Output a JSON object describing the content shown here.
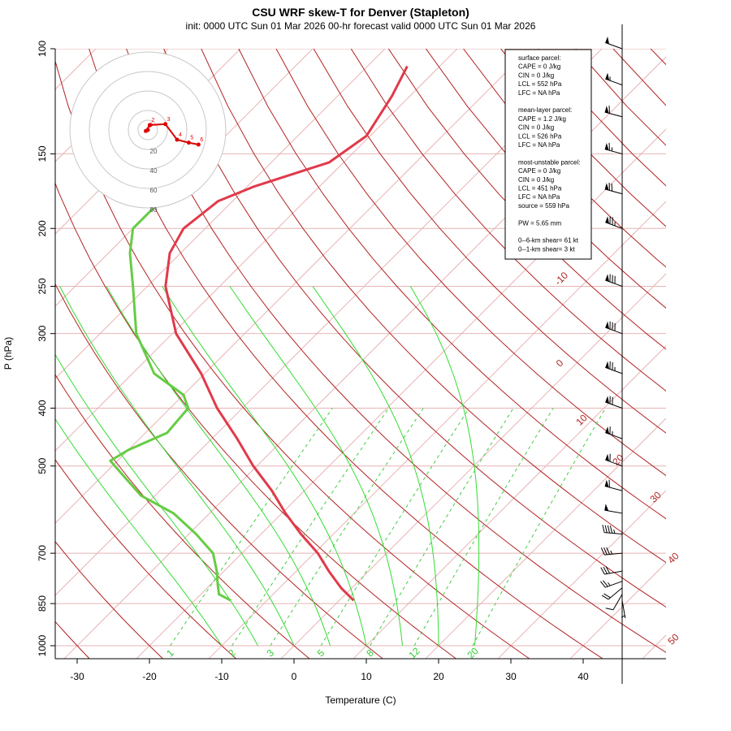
{
  "title": "CSU WRF skew-T for Denver (Stapleton)",
  "subtitle": "init: 0000 UTC Sun 01 Mar 2026    00-hr forecast valid 0000 UTC Sun 01 Mar 2026",
  "colors": {
    "temperature": "#e03a4a",
    "dewpoint": "#66cc44",
    "dry_adiabat": "#b22222",
    "isotherm": "#e8b4b4",
    "isobar": "#e8b4b4",
    "moist_adiabat": "#33dd33",
    "mixing_ratio": "#44cc44",
    "hodograph": "#dd0000",
    "hodo_ring": "#c8c8c8"
  },
  "info_box": [
    "surface parcel:",
    "CAPE = 0 J/kg",
    "CIN = 0 J/kg",
    "LCL = 552 hPa",
    "LFC = NA hPa",
    "",
    "mean-layer parcel:",
    "CAPE = 1.2 J/kg",
    "CIN = 0 J/kg",
    "LCL = 526 hPa",
    "LFC = NA hPa",
    "",
    "most-unstable parcel:",
    "CAPE = 0 J/kg",
    "CIN = 0 J/kg",
    "LCL = 451 hPa",
    "LFC = NA hPa",
    "source = 559 hPa",
    "",
    "PW =  5.65 mm",
    "",
    "0--6-km shear= 61 kt",
    "0--1-km shear= 3 kt"
  ],
  "hodograph": {
    "ring_labels": [
      "20",
      "40",
      "60",
      "80"
    ],
    "points": [
      {
        "label": "0",
        "u": 0,
        "v": 0
      },
      {
        "label": "1",
        "u": -2,
        "v": -1
      },
      {
        "label": "2",
        "u": 2,
        "v": 5
      },
      {
        "label": "3",
        "u": 18,
        "v": 6
      },
      {
        "label": "4",
        "u": 30,
        "v": -10
      },
      {
        "label": "5",
        "u": 42,
        "v": -13
      },
      {
        "label": "6",
        "u": 52,
        "v": -15
      }
    ]
  },
  "chart_data": {
    "type": "line",
    "title": "CSU WRF skew-T for Denver (Stapleton)",
    "xlabel": "Temperature (C)",
    "ylabel": "P (hPa)",
    "x_ticks": [
      -30,
      -20,
      -10,
      0,
      10,
      20,
      30,
      40
    ],
    "y_ticks": [
      100,
      150,
      200,
      250,
      300,
      400,
      500,
      700,
      850,
      1000
    ],
    "xlim": [
      -33,
      45
    ],
    "ylim": [
      1050,
      100
    ],
    "y_scale": "log",
    "skew": "45 degrees",
    "isotherm_labels": [
      "-10",
      "0",
      "10",
      "20",
      "30",
      "40",
      "50"
    ],
    "mixing_ratio_labels": [
      "1",
      "2",
      "3",
      "5",
      "8",
      "12",
      "20"
    ],
    "series": [
      {
        "name": "Temperature",
        "p": [
          840,
          800,
          750,
          700,
          650,
          600,
          550,
          500,
          450,
          400,
          350,
          300,
          250,
          220,
          200,
          180,
          170,
          155,
          140,
          120,
          107
        ],
        "t": [
          2.0,
          -1.5,
          -5.5,
          -9.5,
          -14.5,
          -19.5,
          -24.5,
          -30.5,
          -36.5,
          -43.5,
          -50.5,
          -59.5,
          -67.5,
          -71.5,
          -73.0,
          -72.0,
          -69.0,
          -62.0,
          -60.5,
          -62.5,
          -64.5
        ]
      },
      {
        "name": "Dewpoint",
        "p": [
          840,
          820,
          790,
          750,
          700,
          650,
          600,
          560,
          520,
          490,
          470,
          440,
          400,
          380,
          350,
          300,
          250,
          220,
          200,
          180,
          175
        ],
        "t": [
          -15.0,
          -17.5,
          -19.0,
          -21.0,
          -24.0,
          -29.0,
          -35.0,
          -42.0,
          -47.0,
          -51.0,
          -50.0,
          -47.0,
          -47.5,
          -50.0,
          -57.0,
          -65.0,
          -72.0,
          -77.0,
          -80.0,
          -80.0,
          -79.5
        ]
      }
    ],
    "wind_barbs": [
      {
        "p": 840,
        "dir": 170,
        "spd": 5
      },
      {
        "p": 820,
        "dir": 210,
        "spd": 10
      },
      {
        "p": 800,
        "dir": 230,
        "spd": 20
      },
      {
        "p": 780,
        "dir": 250,
        "spd": 25
      },
      {
        "p": 750,
        "dir": 260,
        "spd": 30
      },
      {
        "p": 700,
        "dir": 265,
        "spd": 35
      },
      {
        "p": 650,
        "dir": 275,
        "spd": 45
      },
      {
        "p": 600,
        "dir": 280,
        "spd": 50
      },
      {
        "p": 550,
        "dir": 285,
        "spd": 60
      },
      {
        "p": 500,
        "dir": 290,
        "spd": 60
      },
      {
        "p": 450,
        "dir": 290,
        "spd": 65
      },
      {
        "p": 400,
        "dir": 290,
        "spd": 70
      },
      {
        "p": 350,
        "dir": 290,
        "spd": 75
      },
      {
        "p": 300,
        "dir": 290,
        "spd": 80
      },
      {
        "p": 250,
        "dir": 290,
        "spd": 80
      },
      {
        "p": 200,
        "dir": 290,
        "spd": 75
      },
      {
        "p": 175,
        "dir": 285,
        "spd": 70
      },
      {
        "p": 150,
        "dir": 285,
        "spd": 65
      },
      {
        "p": 130,
        "dir": 285,
        "spd": 60
      },
      {
        "p": 115,
        "dir": 290,
        "spd": 55
      },
      {
        "p": 100,
        "dir": 290,
        "spd": 50
      }
    ]
  }
}
